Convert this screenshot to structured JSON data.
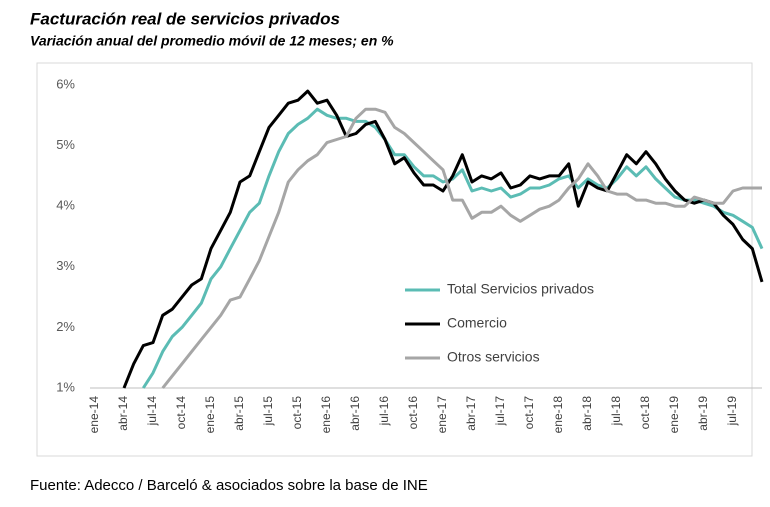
{
  "chart_data": {
    "type": "line",
    "title": "Facturación real de servicios privados",
    "subtitle": "Variación anual del promedio móvil de 12 meses; en %",
    "source": "Fuente: Adecco / Barceló & asociados sobre la base de INE",
    "categories": [
      "ene-14",
      null,
      null,
      "abr-14",
      null,
      null,
      "jul-14",
      null,
      null,
      "oct-14",
      null,
      null,
      "ene-15",
      null,
      null,
      "abr-15",
      null,
      null,
      "jul-15",
      null,
      null,
      "oct-15",
      null,
      null,
      "ene-16",
      null,
      null,
      "abr-16",
      null,
      null,
      "jul-16",
      null,
      null,
      "oct-16",
      null,
      null,
      "ene-17",
      null,
      null,
      "abr-17",
      null,
      null,
      "jul-17",
      null,
      null,
      "oct-17",
      null,
      null,
      "ene-18",
      null,
      null,
      "abr-18",
      null,
      null,
      "jul-18",
      null,
      null,
      "oct-18",
      null,
      null,
      "ene-19",
      null,
      null,
      "abr-19",
      null,
      null,
      "jul-19",
      null,
      null,
      null
    ],
    "series": [
      {
        "name": "Total Servicios privados",
        "color": "#5bbcb4",
        "values": [
          null,
          null,
          null,
          null,
          null,
          1.0,
          1.25,
          1.6,
          1.85,
          2.0,
          2.2,
          2.4,
          2.8,
          3.0,
          3.3,
          3.6,
          3.9,
          4.05,
          4.5,
          4.9,
          5.2,
          5.35,
          5.45,
          5.6,
          5.5,
          5.45,
          5.45,
          5.4,
          5.4,
          5.3,
          5.1,
          4.85,
          4.85,
          4.65,
          4.5,
          4.5,
          4.4,
          4.45,
          4.6,
          4.25,
          4.3,
          4.25,
          4.3,
          4.15,
          4.2,
          4.3,
          4.3,
          4.35,
          4.45,
          4.5,
          4.3,
          4.45,
          4.35,
          4.3,
          4.45,
          4.65,
          4.5,
          4.65,
          4.45,
          4.3,
          4.15,
          4.1,
          4.1,
          4.05,
          4.0,
          3.9,
          3.85,
          3.75,
          3.65,
          3.3
        ]
      },
      {
        "name": "Comercio",
        "color": "#000000",
        "values": [
          null,
          null,
          null,
          1.0,
          1.4,
          1.7,
          1.75,
          2.2,
          2.3,
          2.5,
          2.7,
          2.8,
          3.3,
          3.6,
          3.9,
          4.4,
          4.5,
          4.9,
          5.3,
          5.5,
          5.7,
          5.75,
          5.9,
          5.7,
          5.75,
          5.5,
          5.15,
          5.2,
          5.35,
          5.4,
          5.1,
          4.7,
          4.8,
          4.55,
          4.35,
          4.35,
          4.25,
          4.5,
          4.85,
          4.4,
          4.5,
          4.45,
          4.55,
          4.3,
          4.35,
          4.5,
          4.45,
          4.5,
          4.5,
          4.7,
          4.0,
          4.4,
          4.3,
          4.25,
          4.55,
          4.85,
          4.7,
          4.9,
          4.7,
          4.45,
          4.25,
          4.1,
          4.05,
          4.1,
          4.05,
          3.85,
          3.7,
          3.45,
          3.3,
          2.75
        ]
      },
      {
        "name": "Otros servicios",
        "color": "#a6a6a6",
        "values": [
          null,
          null,
          null,
          null,
          null,
          null,
          null,
          1.0,
          1.2,
          1.4,
          1.6,
          1.8,
          2.0,
          2.2,
          2.45,
          2.5,
          2.8,
          3.1,
          3.5,
          3.9,
          4.4,
          4.6,
          4.75,
          4.85,
          5.05,
          5.1,
          5.15,
          5.45,
          5.6,
          5.6,
          5.55,
          5.3,
          5.2,
          5.05,
          4.9,
          4.75,
          4.6,
          4.1,
          4.1,
          3.8,
          3.9,
          3.9,
          4.0,
          3.85,
          3.75,
          3.85,
          3.95,
          4.0,
          4.1,
          4.3,
          4.45,
          4.7,
          4.5,
          4.25,
          4.2,
          4.2,
          4.1,
          4.1,
          4.05,
          4.05,
          4.0,
          4.0,
          4.15,
          4.1,
          4.05,
          4.05,
          4.25,
          4.3,
          4.3,
          4.3
        ]
      }
    ],
    "ylim": [
      1,
      6
    ],
    "yticks": [
      {
        "value": 1,
        "label": "1%"
      },
      {
        "value": 2,
        "label": "2%"
      },
      {
        "value": 3,
        "label": "3%"
      },
      {
        "value": 4,
        "label": "4%"
      },
      {
        "value": 5,
        "label": "5%"
      },
      {
        "value": 6,
        "label": "6%"
      }
    ],
    "grid": false
  }
}
